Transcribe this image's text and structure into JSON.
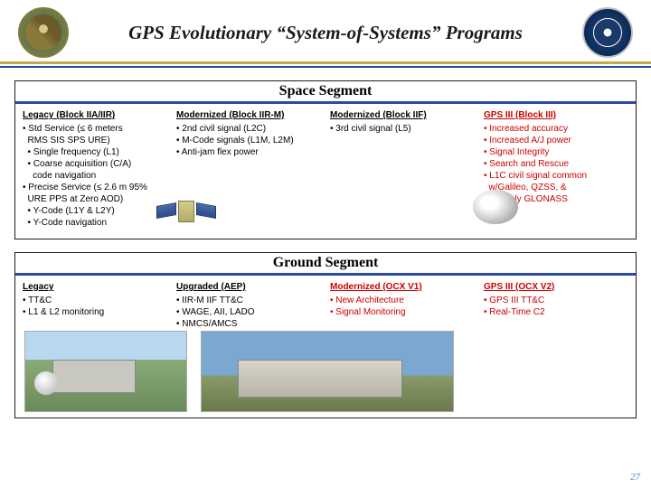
{
  "title": "GPS Evolutionary “System-of-Systems” Programs",
  "page_number": "27",
  "segments": {
    "space": {
      "header": "Space Segment",
      "columns": [
        {
          "heading": "Legacy (Block IIA/IIR)",
          "red": false,
          "lines": [
            "• Std Service (≤ 6 meters",
            "  RMS SIS SPS URE)",
            "  • Single frequency (L1)",
            "  • Coarse acquisition (C/A)",
            "    code navigation",
            "• Precise Service (≤ 2.6 m 95%",
            "  URE PPS at Zero AOD)",
            "  • Y-Code (L1Y & L2Y)",
            "  • Y-Code navigation"
          ]
        },
        {
          "heading": "Modernized (Block IIR-M)",
          "red": false,
          "lines": [
            "• 2nd civil signal (L2C)",
            "• M-Code signals (L1M, L2M)",
            "• Anti-jam flex power"
          ]
        },
        {
          "heading": "Modernized (Block IIF)",
          "red": false,
          "lines": [
            "• 3rd civil signal (L5)"
          ]
        },
        {
          "heading": "GPS III (Block III)",
          "red": true,
          "lines": [
            "• Increased accuracy",
            "• Increased A/J power",
            "• Signal Integrity",
            "• Search and Rescue",
            "• L1C civil signal common",
            "  w/Galileo, QZSS, &",
            "  possibly GLONASS"
          ]
        }
      ]
    },
    "ground": {
      "header": "Ground Segment",
      "columns": [
        {
          "heading": "Legacy",
          "red": false,
          "lines": [
            "• TT&C",
            "• L1 & L2 monitoring"
          ]
        },
        {
          "heading": "Upgraded (AEP)",
          "red": false,
          "lines": [
            "• IIR-M IIF TT&C",
            "• WAGE, AII, LADO",
            "• NMCS/AMCS"
          ]
        },
        {
          "heading": "Modernized (OCX V1)",
          "red": true,
          "lines": [
            "• New Architecture",
            "• Signal Monitoring"
          ]
        },
        {
          "heading": "GPS III (OCX V2)",
          "red": true,
          "lines": [
            "• GPS III TT&C",
            "• Real-Time C2"
          ]
        }
      ]
    }
  }
}
